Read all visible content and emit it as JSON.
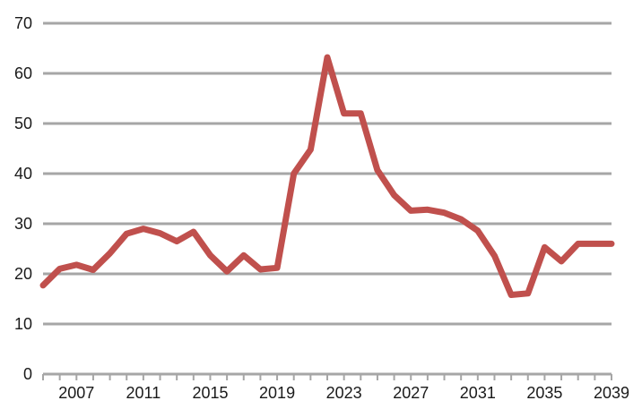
{
  "chart_data": {
    "type": "line",
    "title": "",
    "xlabel": "",
    "ylabel": "",
    "xlim": [
      2005,
      2039
    ],
    "ylim": [
      0,
      70
    ],
    "y_ticks": [
      0,
      10,
      20,
      30,
      40,
      50,
      60,
      70
    ],
    "y_tick_labels": [
      "0",
      "10",
      "20",
      "30",
      "40",
      "50",
      "60",
      "70"
    ],
    "x_tick_labels": [
      "2007",
      "2011",
      "2015",
      "2019",
      "2023",
      "2027",
      "2031",
      "2035",
      "2039"
    ],
    "x_tick_values": [
      2007,
      2011,
      2015,
      2019,
      2023,
      2027,
      2031,
      2035,
      2039
    ],
    "grid": true,
    "series": [
      {
        "color": "#c0504d",
        "x": [
          2005,
          2006,
          2007,
          2008,
          2009,
          2010,
          2011,
          2012,
          2013,
          2014,
          2015,
          2016,
          2017,
          2018,
          2019,
          2020,
          2021,
          2022,
          2023,
          2024,
          2025,
          2026,
          2027,
          2028,
          2029,
          2030,
          2031,
          2032,
          2033,
          2034,
          2035,
          2036,
          2037,
          2038,
          2039
        ],
        "values": [
          17.7,
          21.0,
          21.8,
          20.8,
          24.1,
          28.0,
          29.0,
          28.1,
          26.5,
          28.4,
          23.7,
          20.5,
          23.7,
          20.9,
          21.2,
          40.0,
          44.8,
          63.2,
          52.0,
          52.0,
          40.7,
          35.7,
          32.6,
          32.8,
          32.2,
          30.9,
          28.6,
          23.6,
          15.8,
          16.1,
          25.3,
          22.5,
          26.0,
          26.0,
          26.0
        ]
      }
    ]
  }
}
